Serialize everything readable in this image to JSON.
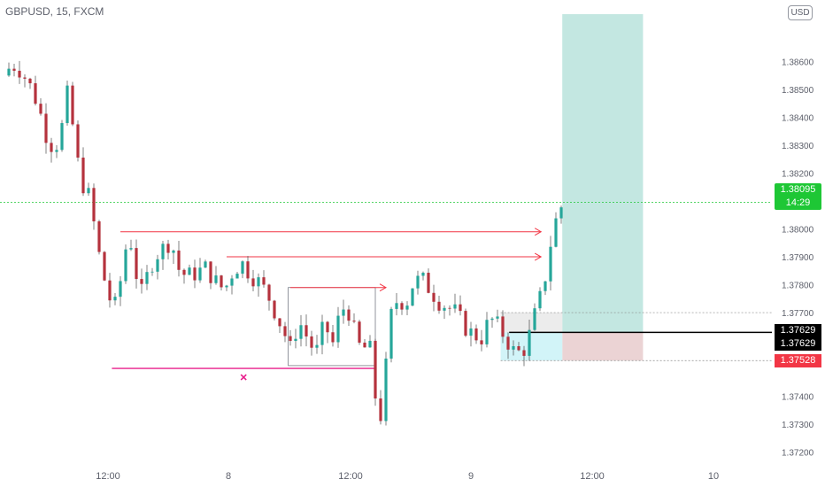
{
  "header": {
    "ticker_label": "GBPUSD, 15, FXCM",
    "currency_badge": "USD"
  },
  "chart_data": {
    "type": "candlestick",
    "symbol": "GBPUSD",
    "timeframe": "15",
    "source": "FXCM",
    "x_tick_labels": [
      "12:00",
      "8",
      "12:00",
      "9",
      "12:00",
      "10"
    ],
    "y_tick_labels": [
      "1.38600",
      "1.38500",
      "1.38400",
      "1.38300",
      "1.38200",
      "1.38000",
      "1.37900",
      "1.37800",
      "1.37700",
      "1.37400",
      "1.37300",
      "1.37200"
    ],
    "ylim": [
      1.3717,
      1.3877
    ],
    "current_price": "1.38095",
    "countdown": "14:29",
    "price_tags": {
      "entry_top": "1.37629",
      "entry_bottom": "1.37629",
      "stop": "1.37528"
    },
    "close_path": [
      {
        "x": 0.0,
        "y": 1.3855
      },
      {
        "x": 0.4,
        "y": 1.3859
      },
      {
        "x": 0.8,
        "y": 1.3857
      },
      {
        "x": 1.2,
        "y": 1.3852
      },
      {
        "x": 1.6,
        "y": 1.3845
      },
      {
        "x": 2.0,
        "y": 1.3834
      },
      {
        "x": 2.4,
        "y": 1.3828
      },
      {
        "x": 2.8,
        "y": 1.3838
      },
      {
        "x": 3.0,
        "y": 1.3848
      },
      {
        "x": 3.3,
        "y": 1.3835
      },
      {
        "x": 3.6,
        "y": 1.3818
      },
      {
        "x": 4.0,
        "y": 1.3812
      },
      {
        "x": 4.3,
        "y": 1.38
      },
      {
        "x": 4.6,
        "y": 1.3786
      },
      {
        "x": 5.0,
        "y": 1.3775
      },
      {
        "x": 5.3,
        "y": 1.3772
      },
      {
        "x": 5.6,
        "y": 1.3786
      },
      {
        "x": 5.9,
        "y": 1.38
      },
      {
        "x": 6.2,
        "y": 1.3785
      },
      {
        "x": 6.5,
        "y": 1.3777
      },
      {
        "x": 6.8,
        "y": 1.3784
      },
      {
        "x": 7.1,
        "y": 1.379
      },
      {
        "x": 7.5,
        "y": 1.3793
      },
      {
        "x": 7.9,
        "y": 1.3796
      },
      {
        "x": 8.2,
        "y": 1.3786
      },
      {
        "x": 8.6,
        "y": 1.3783
      },
      {
        "x": 9.0,
        "y": 1.3784
      },
      {
        "x": 9.5,
        "y": 1.3786
      },
      {
        "x": 10.0,
        "y": 1.3781
      },
      {
        "x": 10.4,
        "y": 1.3778
      },
      {
        "x": 10.8,
        "y": 1.3785
      },
      {
        "x": 11.2,
        "y": 1.3788
      },
      {
        "x": 11.6,
        "y": 1.3784
      },
      {
        "x": 12.0,
        "y": 1.3781
      },
      {
        "x": 12.4,
        "y": 1.3777
      },
      {
        "x": 12.8,
        "y": 1.377
      },
      {
        "x": 13.2,
        "y": 1.3763
      },
      {
        "x": 13.5,
        "y": 1.3757
      },
      {
        "x": 13.9,
        "y": 1.3767
      },
      {
        "x": 14.3,
        "y": 1.3761
      },
      {
        "x": 14.7,
        "y": 1.3755
      },
      {
        "x": 15.1,
        "y": 1.3766
      },
      {
        "x": 15.5,
        "y": 1.3759
      },
      {
        "x": 15.9,
        "y": 1.3772
      },
      {
        "x": 16.3,
        "y": 1.377
      },
      {
        "x": 16.6,
        "y": 1.376
      },
      {
        "x": 16.9,
        "y": 1.3756
      },
      {
        "x": 17.2,
        "y": 1.376
      },
      {
        "x": 17.5,
        "y": 1.374
      },
      {
        "x": 17.7,
        "y": 1.373
      },
      {
        "x": 17.9,
        "y": 1.3742
      },
      {
        "x": 18.2,
        "y": 1.3768
      },
      {
        "x": 18.6,
        "y": 1.3776
      },
      {
        "x": 18.9,
        "y": 1.3772
      },
      {
        "x": 19.3,
        "y": 1.3781
      },
      {
        "x": 19.7,
        "y": 1.3782
      },
      {
        "x": 20.1,
        "y": 1.3778
      },
      {
        "x": 20.5,
        "y": 1.3774
      },
      {
        "x": 20.9,
        "y": 1.3772
      },
      {
        "x": 21.3,
        "y": 1.377
      },
      {
        "x": 21.7,
        "y": 1.3765
      },
      {
        "x": 22.1,
        "y": 1.3762
      },
      {
        "x": 22.5,
        "y": 1.3761
      },
      {
        "x": 22.9,
        "y": 1.3768
      },
      {
        "x": 23.3,
        "y": 1.3765
      },
      {
        "x": 23.7,
        "y": 1.376
      },
      {
        "x": 24.1,
        "y": 1.3755
      },
      {
        "x": 24.5,
        "y": 1.3757
      },
      {
        "x": 24.8,
        "y": 1.3763
      },
      {
        "x": 25.1,
        "y": 1.3772
      },
      {
        "x": 25.4,
        "y": 1.3778
      },
      {
        "x": 25.7,
        "y": 1.3793
      },
      {
        "x": 26.0,
        "y": 1.3803
      },
      {
        "x": 26.3,
        "y": 1.3809
      }
    ],
    "drawings": {
      "target_zone": {
        "x_start": 26.3,
        "x_end": 30.1,
        "y_low": 1.37629,
        "y_high": 1.3877
      },
      "stop_zone": {
        "x_start": 26.3,
        "x_end": 30.1,
        "y_low": 1.37528,
        "y_high": 1.37629
      },
      "entry_box_gray": {
        "x_start": 23.4,
        "x_end": 26.3,
        "y_low": 1.37629,
        "y_high": 1.377
      },
      "entry_box_cyan": {
        "x_start": 23.4,
        "x_end": 26.3,
        "y_low": 1.37528,
        "y_high": 1.37629
      },
      "consolidation_box": {
        "x_start": 13.4,
        "x_end": 17.5,
        "y_low": 1.3751,
        "y_high": 1.3779
      },
      "resistance_arrows": [
        {
          "x_start": 5.5,
          "x_end": 25.3,
          "y": 1.3799
        },
        {
          "x_start": 10.5,
          "x_end": 25.3,
          "y": 1.379
        },
        {
          "x_start": 13.5,
          "x_end": 18.0,
          "y": 1.3779
        }
      ],
      "support_line": {
        "x_start": 5.1,
        "x_end": 17.5,
        "y": 1.375,
        "marker": "x"
      },
      "entry_line": {
        "x_start": 23.8,
        "x_end": 35.0,
        "y": 1.37629
      },
      "current_price_line": {
        "y": 1.38095
      }
    },
    "grid": false,
    "legend": "none"
  }
}
